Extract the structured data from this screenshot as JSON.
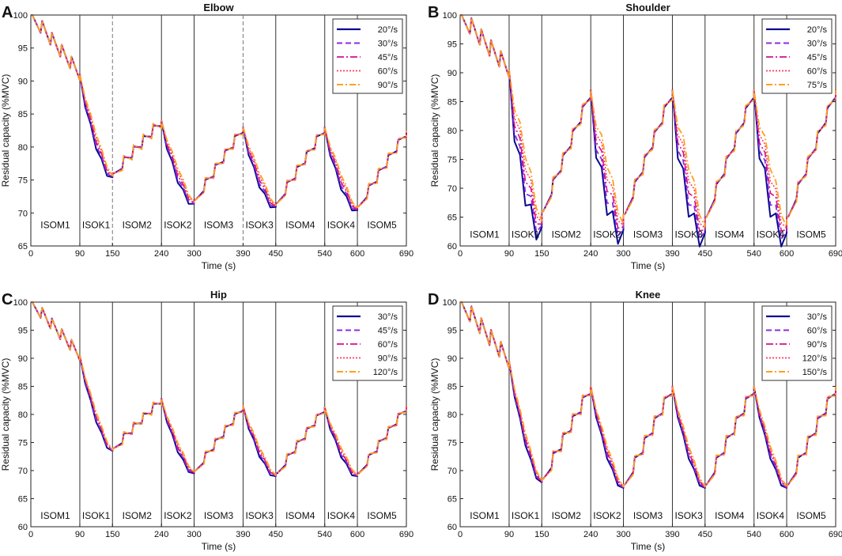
{
  "figure": {
    "colors": {
      "s1": "#0a0a8f",
      "s2": "#8a2be2",
      "s3": "#d0108a",
      "s4": "#ff3b5c",
      "s5": "#ffa020"
    }
  },
  "chart_data": [
    {
      "type": "line",
      "panel_letter": "A",
      "title": "Elbow",
      "xlabel": "Time (s)",
      "ylabel": "Residual capacity (%MVC)",
      "xlim": [
        0,
        690
      ],
      "ylim": [
        65,
        100
      ],
      "yticks": [
        65,
        70,
        75,
        80,
        85,
        90,
        95,
        100
      ],
      "xticks": [
        0,
        90,
        150,
        240,
        300,
        390,
        450,
        540,
        600,
        690
      ],
      "vlines": [
        {
          "x": 90,
          "style": "solid"
        },
        {
          "x": 150,
          "style": "dashed"
        },
        {
          "x": 240,
          "style": "solid"
        },
        {
          "x": 300,
          "style": "solid"
        },
        {
          "x": 390,
          "style": "dashed"
        },
        {
          "x": 450,
          "style": "solid"
        },
        {
          "x": 540,
          "style": "solid"
        },
        {
          "x": 600,
          "style": "solid"
        }
      ],
      "phases": [
        "ISOM1",
        "ISOK1",
        "ISOM2",
        "ISOK2",
        "ISOM3",
        "ISOK3",
        "ISOM4",
        "ISOK4",
        "ISOM5"
      ],
      "phase_label_y": 68.2,
      "legend": [
        "20°/s",
        "30°/s",
        "45°/s",
        "60°/s",
        "90°/s"
      ],
      "legend_position": "top-right",
      "boundary_values": [
        100,
        91.0,
        76.0,
        84.0,
        72.0,
        83.0,
        71.5,
        83.0,
        71.0,
        82.5
      ],
      "teeth": 5,
      "tooth_drop": 2.0,
      "isok_extra_dip": 1.2,
      "spread": 0.4
    },
    {
      "type": "line",
      "panel_letter": "B",
      "title": "Shoulder",
      "xlabel": "Time (s)",
      "ylabel": "Residual capacity (%MVC)",
      "xlim": [
        0,
        690
      ],
      "ylim": [
        60,
        100
      ],
      "yticks": [
        60,
        65,
        70,
        75,
        80,
        85,
        90,
        95,
        100
      ],
      "xticks": [
        0,
        90,
        150,
        240,
        300,
        390,
        450,
        540,
        600,
        690
      ],
      "vlines": [
        {
          "x": 90,
          "style": "solid"
        },
        {
          "x": 150,
          "style": "solid"
        },
        {
          "x": 240,
          "style": "solid"
        },
        {
          "x": 300,
          "style": "solid"
        },
        {
          "x": 390,
          "style": "solid"
        },
        {
          "x": 450,
          "style": "solid"
        },
        {
          "x": 540,
          "style": "solid"
        },
        {
          "x": 600,
          "style": "solid"
        }
      ],
      "phases": [
        "ISOM1",
        "ISOK1",
        "ISOM2",
        "ISOK2",
        "ISOM3",
        "ISOK3",
        "ISOM4",
        "ISOK4",
        "ISOM5"
      ],
      "phase_label_y": 62.0,
      "legend": [
        "20°/s",
        "30°/s",
        "45°/s",
        "60°/s",
        "75°/s"
      ],
      "legend_position": "top-right",
      "boundary_values": [
        100,
        90.5,
        66.0,
        87.0,
        65.5,
        87.0,
        65.0,
        87.0,
        65.0,
        87.0
      ],
      "teeth": 5,
      "tooth_drop": 3.0,
      "isok_extra_dip": 5.5,
      "spread": 1.4
    },
    {
      "type": "line",
      "panel_letter": "C",
      "title": "Hip",
      "xlabel": "Time (s)",
      "ylabel": "Residual capacity (%MVC)",
      "xlim": [
        0,
        690
      ],
      "ylim": [
        60,
        100
      ],
      "yticks": [
        60,
        65,
        70,
        75,
        80,
        85,
        90,
        95,
        100
      ],
      "xticks": [
        0,
        90,
        150,
        240,
        300,
        390,
        450,
        540,
        600,
        690
      ],
      "vlines": [
        {
          "x": 90,
          "style": "solid"
        },
        {
          "x": 150,
          "style": "solid"
        },
        {
          "x": 240,
          "style": "solid"
        },
        {
          "x": 300,
          "style": "solid"
        },
        {
          "x": 390,
          "style": "solid"
        },
        {
          "x": 450,
          "style": "solid"
        },
        {
          "x": 540,
          "style": "solid"
        },
        {
          "x": 600,
          "style": "solid"
        }
      ],
      "phases": [
        "ISOM1",
        "ISOK1",
        "ISOM2",
        "ISOK2",
        "ISOM3",
        "ISOK3",
        "ISOM4",
        "ISOK4",
        "ISOM5"
      ],
      "phase_label_y": 62.0,
      "legend": [
        "30°/s",
        "45°/s",
        "60°/s",
        "90°/s",
        "120°/s"
      ],
      "legend_position": "top-right",
      "boundary_values": [
        100,
        90.5,
        74.0,
        82.8,
        70.0,
        81.5,
        69.5,
        81.3,
        69.5,
        81.5
      ],
      "teeth": 5,
      "tooth_drop": 2.0,
      "isok_extra_dip": 1.0,
      "spread": 0.3
    },
    {
      "type": "line",
      "panel_letter": "D",
      "title": "Knee",
      "xlabel": "Time (s)",
      "ylabel": "Residual capacity (%MVC)",
      "xlim": [
        0,
        690
      ],
      "ylim": [
        60,
        100
      ],
      "yticks": [
        60,
        65,
        70,
        75,
        80,
        85,
        90,
        95,
        100
      ],
      "xticks": [
        0,
        90,
        150,
        240,
        300,
        390,
        450,
        540,
        600,
        690
      ],
      "vlines": [
        {
          "x": 90,
          "style": "solid"
        },
        {
          "x": 150,
          "style": "solid"
        },
        {
          "x": 240,
          "style": "solid"
        },
        {
          "x": 300,
          "style": "solid"
        },
        {
          "x": 390,
          "style": "solid"
        },
        {
          "x": 450,
          "style": "solid"
        },
        {
          "x": 540,
          "style": "solid"
        },
        {
          "x": 600,
          "style": "solid"
        }
      ],
      "phases": [
        "ISOM1",
        "ISOK1",
        "ISOM2",
        "ISOK2",
        "ISOM3",
        "ISOK3",
        "ISOM4",
        "ISOK4",
        "ISOM5"
      ],
      "phase_label_y": 62.0,
      "legend": [
        "30°/s",
        "60°/s",
        "90°/s",
        "120°/s",
        "150°/s"
      ],
      "legend_position": "top-right",
      "boundary_values": [
        100,
        89.5,
        68.5,
        85.0,
        67.5,
        85.0,
        67.5,
        85.0,
        67.5,
        85.0
      ],
      "teeth": 5,
      "tooth_drop": 3.0,
      "isok_extra_dip": 1.2,
      "spread": 0.4
    }
  ]
}
